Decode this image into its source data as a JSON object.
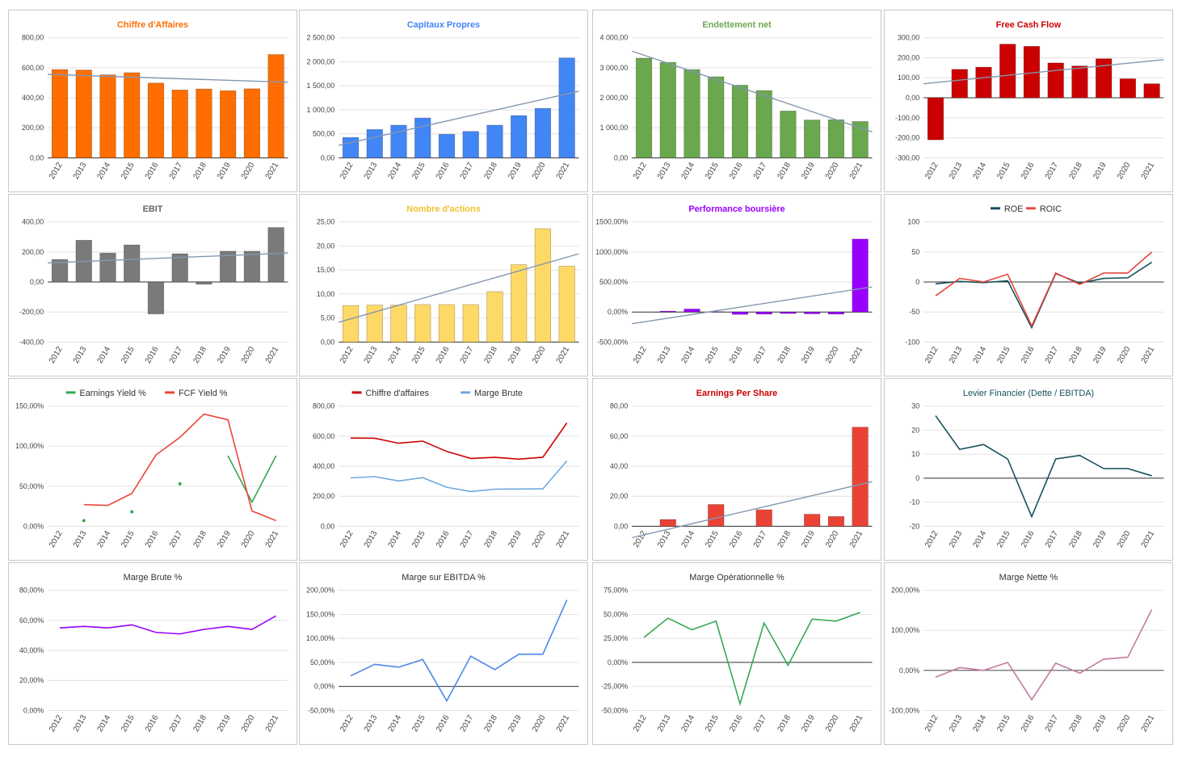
{
  "years": [
    "2012",
    "2013",
    "2014",
    "2015",
    "2016",
    "2017",
    "2018",
    "2019",
    "2020",
    "2021"
  ],
  "chart_data": [
    {
      "type": "bar",
      "title": "Chiffre d'Affaires",
      "title_color": "#ff6d01",
      "color": "#ff6d01",
      "values": [
        588,
        585,
        553,
        567,
        498,
        452,
        459,
        447,
        460,
        688
      ],
      "yticks": [
        "800,00",
        "600,00",
        "400,00",
        "200,00",
        "0,00"
      ],
      "ylim": [
        0,
        800
      ],
      "trendline": true
    },
    {
      "type": "bar",
      "title": "Capitaux Propres",
      "title_color": "#4285f4",
      "color": "#4285f4",
      "values": [
        425,
        590,
        680,
        830,
        490,
        550,
        680,
        880,
        1030,
        2080
      ],
      "yticks": [
        "2 500,00",
        "2 000,00",
        "1 500,00",
        "1 000,00",
        "500,00",
        "0,00"
      ],
      "ylim": [
        0,
        2500
      ],
      "trendline": true
    },
    {
      "type": "bar",
      "title": "Endettement net",
      "title_color": "#6aa84f",
      "color": "#6aa84f",
      "values": [
        3320,
        3180,
        2940,
        2700,
        2420,
        2240,
        1560,
        1260,
        1270,
        1210
      ],
      "yticks": [
        "4 000,00",
        "3 000,00",
        "2 000,00",
        "1 000,00",
        "0,00"
      ],
      "ylim": [
        0,
        4000
      ],
      "trendline": true
    },
    {
      "type": "bar",
      "title": "Free Cash Flow",
      "title_color": "#cc0000",
      "color": "#cc0000",
      "values": [
        -210,
        142,
        153,
        268,
        257,
        174,
        159,
        195,
        95,
        70
      ],
      "yticks": [
        "300,00",
        "200,00",
        "100,00",
        "0,00",
        "-100,00",
        "-200,00",
        "-300,00"
      ],
      "ylim": [
        -300,
        300
      ],
      "trendline": true
    },
    {
      "type": "bar",
      "title": "EBIT",
      "title_color": "#666666",
      "color": "#7a7a7a",
      "values": [
        150,
        278,
        193,
        247,
        -213,
        188,
        -15,
        205,
        205,
        363
      ],
      "yticks": [
        "400,00",
        "200,00",
        "0,00",
        "-200,00",
        "-400,00"
      ],
      "ylim": [
        -400,
        400
      ],
      "trendline": true
    },
    {
      "type": "bar",
      "title": "Nombre d'actions",
      "title_color": "#f1c232",
      "color": "#ffd966",
      "values": [
        7.6,
        7.7,
        7.7,
        7.8,
        7.8,
        7.8,
        10.5,
        16.1,
        23.6,
        15.8
      ],
      "yticks": [
        "25,00",
        "20,00",
        "15,00",
        "10,00",
        "5,00",
        "0,00"
      ],
      "ylim": [
        0,
        25
      ],
      "trendline": true
    },
    {
      "type": "bar",
      "title": "Performance boursière",
      "title_color": "#9900ff",
      "color": "#9900ff",
      "values": [
        0,
        15,
        50,
        5,
        -40,
        -35,
        -25,
        -30,
        -35,
        1215
      ],
      "yticks": [
        "1500,00%",
        "1000,00%",
        "500,00%",
        "0,00%",
        "-500,00%"
      ],
      "ylim": [
        -500,
        1500
      ],
      "trendline": true
    },
    {
      "type": "line",
      "title": "",
      "yticks": [
        "100",
        "50",
        "0",
        "-50",
        "-100"
      ],
      "ylim": [
        -100,
        100
      ],
      "zero_line": true,
      "series": [
        {
          "name": "ROE",
          "color": "#134f5c",
          "values": [
            -3,
            1,
            -1,
            2,
            -76,
            14,
            -2,
            6,
            7,
            33
          ]
        },
        {
          "name": "ROIC",
          "color": "#e8453c",
          "values": [
            -23,
            6,
            0,
            13,
            -73,
            15,
            -4,
            15,
            15,
            50
          ]
        }
      ]
    },
    {
      "type": "line",
      "title": "",
      "yticks": [
        "150,00%",
        "100,00%",
        "50,00%",
        "0,00%"
      ],
      "ylim": [
        0,
        150
      ],
      "series": [
        {
          "name": "Earnings Yield %",
          "color": "#34a853",
          "values": [
            null,
            7,
            null,
            18,
            null,
            53,
            null,
            88,
            30,
            88
          ],
          "dots": true
        },
        {
          "name": "FCF Yield %",
          "color": "#ea4335",
          "values": [
            null,
            27,
            26,
            41,
            89,
            111,
            140,
            133,
            19,
            7
          ]
        }
      ]
    },
    {
      "type": "line",
      "title": "",
      "yticks": [
        "800,00",
        "600,00",
        "400,00",
        "200,00",
        "0,00"
      ],
      "ylim": [
        0,
        800
      ],
      "series": [
        {
          "name": "Chiffre d'affaires",
          "color": "#cc0000",
          "values": [
            588,
            586,
            553,
            567,
            498,
            452,
            459,
            447,
            460,
            688
          ]
        },
        {
          "name": "Marge Brute",
          "color": "#6fa8dc",
          "values": [
            322,
            330,
            302,
            324,
            260,
            231,
            247,
            248,
            249,
            435
          ]
        }
      ]
    },
    {
      "type": "bar",
      "title": "Earnings Per Share",
      "title_color": "#cc0000",
      "color": "#ea4335",
      "values": [
        0,
        4.5,
        0,
        14.5,
        0,
        11,
        0,
        8,
        6.5,
        66
      ],
      "yticks": [
        "80,00",
        "60,00",
        "40,00",
        "20,00",
        "0,00"
      ],
      "ylim": [
        0,
        80
      ],
      "trendline": true
    },
    {
      "type": "line",
      "title": "Levier Financier (Dette / EBITDA)",
      "title_color": "#134f5c",
      "yticks": [
        "30",
        "20",
        "10",
        "0",
        "-10",
        "-20"
      ],
      "ylim": [
        -20,
        30
      ],
      "zero_line": true,
      "series": [
        {
          "name": "",
          "color": "#134f5c",
          "values": [
            26,
            12,
            14,
            8,
            -16,
            8,
            9.5,
            4,
            4,
            1
          ]
        }
      ]
    },
    {
      "type": "line",
      "title": "Marge Brute %",
      "title_color": "#333333",
      "yticks": [
        "80,00%",
        "60,00%",
        "40,00%",
        "20,00%",
        "0,00%"
      ],
      "ylim": [
        0,
        80
      ],
      "series": [
        {
          "name": "",
          "color": "#9900ff",
          "values": [
            55,
            56,
            55,
            57,
            52,
            51,
            54,
            56,
            54,
            63
          ]
        }
      ]
    },
    {
      "type": "line",
      "title": "Marge sur EBITDA %",
      "title_color": "#333333",
      "yticks": [
        "200,00%",
        "150,00%",
        "100,00%",
        "50,00%",
        "0,00%",
        "-50,00%"
      ],
      "ylim": [
        -50,
        200
      ],
      "zero_line": true,
      "series": [
        {
          "name": "",
          "color": "#4a86e8",
          "values": [
            22,
            46,
            40,
            56,
            -30,
            63,
            35,
            67,
            67,
            180
          ]
        }
      ]
    },
    {
      "type": "line",
      "title": "Marge Opérationnelle %",
      "title_color": "#333333",
      "yticks": [
        "75,00%",
        "50,00%",
        "25,00%",
        "0,00%",
        "-25,00%",
        "-50,00%"
      ],
      "ylim": [
        -50,
        75
      ],
      "zero_line": true,
      "series": [
        {
          "name": "",
          "color": "#34a853",
          "values": [
            26,
            46,
            34,
            43,
            -43,
            41,
            -3,
            45,
            43,
            52
          ]
        }
      ]
    },
    {
      "type": "line",
      "title": "Marge Nette %",
      "title_color": "#333333",
      "yticks": [
        "200,00%",
        "100,00%",
        "0,00%",
        "-100,00%"
      ],
      "ylim": [
        -100,
        200
      ],
      "zero_line": true,
      "series": [
        {
          "name": "",
          "color": "#c27ba0",
          "values": [
            -17,
            7,
            0,
            20,
            -73,
            18,
            -7,
            28,
            33,
            152
          ]
        }
      ]
    }
  ]
}
